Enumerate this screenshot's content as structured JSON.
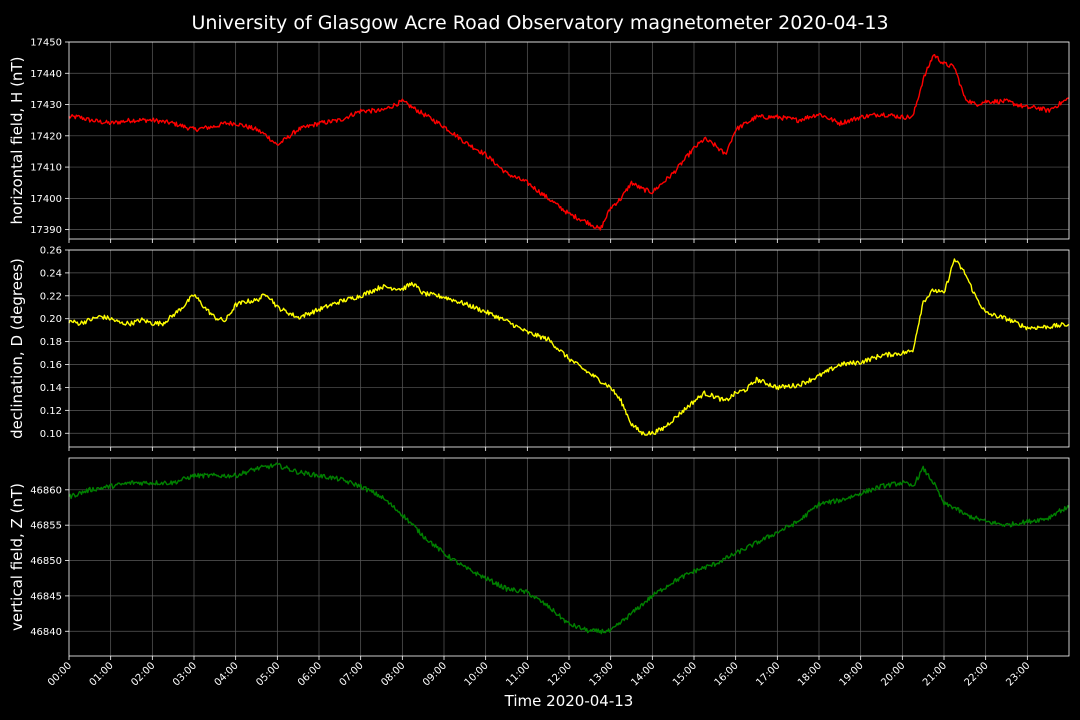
{
  "chart_data": {
    "type": "line",
    "title": "University of Glasgow Acre Road Observatory magnetometer 2020-04-13",
    "xlabel": "Time 2020-04-13",
    "xlim": [
      0,
      24
    ],
    "x_ticks": [
      "00:00",
      "01:00",
      "02:00",
      "03:00",
      "04:00",
      "05:00",
      "06:00",
      "07:00",
      "08:00",
      "09:00",
      "10:00",
      "11:00",
      "12:00",
      "13:00",
      "14:00",
      "15:00",
      "16:00",
      "17:00",
      "18:00",
      "19:00",
      "20:00",
      "21:00",
      "22:00",
      "23:00"
    ],
    "grid": true,
    "panels": [
      {
        "ylabel": "horizontal field, H (nT)",
        "color": "#ff0000",
        "ylim": [
          17387,
          17450
        ],
        "y_ticks": [
          17390,
          17400,
          17410,
          17420,
          17430,
          17440,
          17450
        ],
        "tick_decimals": 0,
        "x": [
          0,
          0.25,
          0.5,
          1,
          1.5,
          2,
          2.5,
          2.75,
          3,
          3.5,
          3.75,
          4,
          4.5,
          4.75,
          5,
          5.5,
          6,
          6.5,
          7,
          7.5,
          8,
          8.5,
          9,
          9.5,
          10,
          10.5,
          11,
          11.5,
          12,
          12.5,
          12.75,
          13,
          13.25,
          13.5,
          13.75,
          14,
          14.5,
          14.75,
          15,
          15.25,
          15.5,
          15.75,
          16,
          16.5,
          17,
          17.5,
          18,
          18.5,
          19,
          19.5,
          20,
          20.25,
          20.5,
          20.75,
          21,
          21.25,
          21.5,
          21.75,
          22,
          22.5,
          23,
          23.25,
          23.5,
          23.75,
          24
        ],
        "values": [
          17426,
          17426,
          17425,
          17424,
          17425,
          17425,
          17424,
          17423,
          17422,
          17423,
          17424,
          17424,
          17422,
          17420,
          17417,
          17422,
          17424,
          17425,
          17428,
          17428,
          17431,
          17427,
          17423,
          17418,
          17414,
          17408,
          17405,
          17400,
          17395,
          17392,
          17390,
          17397,
          17400,
          17405,
          17403,
          17402,
          17408,
          17412,
          17416,
          17419,
          17417,
          17414,
          17422,
          17426,
          17426,
          17425,
          17427,
          17424,
          17426,
          17427,
          17426,
          17426,
          17438,
          17446,
          17443,
          17442,
          17432,
          17430,
          17431,
          17431,
          17429,
          17429,
          17428,
          17430,
          17432
        ]
      },
      {
        "ylabel": "declination, D (degrees)",
        "color": "#ffff00",
        "ylim": [
          0.088,
          0.26
        ],
        "y_ticks": [
          0.1,
          0.12,
          0.14,
          0.16,
          0.18,
          0.2,
          0.22,
          0.24,
          0.26
        ],
        "tick_decimals": 2,
        "x": [
          0,
          0.25,
          0.5,
          0.75,
          1,
          1.25,
          1.5,
          1.75,
          2,
          2.25,
          2.5,
          2.75,
          3,
          3.25,
          3.5,
          3.75,
          4,
          4.25,
          4.5,
          4.75,
          5,
          5.5,
          6,
          6.5,
          7,
          7.5,
          8,
          8.25,
          8.5,
          9,
          9.5,
          10,
          10.5,
          11,
          11.5,
          12,
          12.5,
          13,
          13.25,
          13.5,
          13.75,
          14,
          14.25,
          14.5,
          14.75,
          15,
          15.25,
          15.5,
          15.75,
          16,
          16.25,
          16.5,
          17,
          17.5,
          18,
          18.5,
          19,
          19.5,
          20,
          20.25,
          20.5,
          20.75,
          21,
          21.25,
          21.5,
          21.75,
          22,
          22.5,
          23,
          23.5,
          24
        ],
        "values": [
          0.198,
          0.196,
          0.199,
          0.202,
          0.2,
          0.196,
          0.196,
          0.199,
          0.196,
          0.196,
          0.203,
          0.211,
          0.221,
          0.21,
          0.201,
          0.198,
          0.212,
          0.215,
          0.216,
          0.222,
          0.21,
          0.201,
          0.208,
          0.215,
          0.22,
          0.228,
          0.226,
          0.231,
          0.222,
          0.219,
          0.213,
          0.206,
          0.198,
          0.188,
          0.182,
          0.165,
          0.152,
          0.14,
          0.128,
          0.108,
          0.1,
          0.1,
          0.104,
          0.112,
          0.12,
          0.128,
          0.135,
          0.132,
          0.128,
          0.135,
          0.138,
          0.147,
          0.14,
          0.142,
          0.15,
          0.16,
          0.162,
          0.168,
          0.17,
          0.172,
          0.215,
          0.225,
          0.222,
          0.252,
          0.24,
          0.22,
          0.205,
          0.2,
          0.192,
          0.193,
          0.195
        ]
      },
      {
        "ylabel": "vertical field, Z (nT)",
        "color": "#008000",
        "ylim": [
          46836.5,
          46864.5
        ],
        "y_ticks": [
          46840,
          46845,
          46850,
          46855,
          46860
        ],
        "tick_decimals": 0,
        "x": [
          0,
          0.5,
          1,
          1.5,
          2,
          2.5,
          3,
          3.5,
          4,
          4.5,
          5,
          5.5,
          6,
          6.5,
          7,
          7.5,
          8,
          8.5,
          9,
          9.5,
          10,
          10.5,
          11,
          11.5,
          12,
          12.5,
          13,
          13.5,
          14,
          14.5,
          15,
          15.5,
          16,
          16.5,
          17,
          17.5,
          18,
          18.5,
          19,
          19.5,
          20,
          20.25,
          20.5,
          20.75,
          21,
          21.25,
          21.5,
          21.75,
          22,
          22.5,
          23,
          23.5,
          23.75,
          24
        ],
        "values": [
          46859,
          46860,
          46860.5,
          46861,
          46861,
          46861,
          46862,
          46862,
          46862,
          46863,
          46863.5,
          46862.5,
          46862,
          46861.5,
          46860.5,
          46859,
          46856.5,
          46853.5,
          46851,
          46849,
          46847.5,
          46846,
          46845.5,
          46843.5,
          46841,
          46840,
          46840,
          46842.5,
          46845,
          46847,
          46848.5,
          46849.5,
          46851,
          46852.5,
          46854,
          46855.5,
          46858,
          46858.5,
          46859.5,
          46860.5,
          46861,
          46860.5,
          46863,
          46861,
          46858,
          46857.5,
          46856.5,
          46856,
          46855.5,
          46855,
          46855.5,
          46856,
          46857,
          46857.5
        ]
      }
    ]
  }
}
